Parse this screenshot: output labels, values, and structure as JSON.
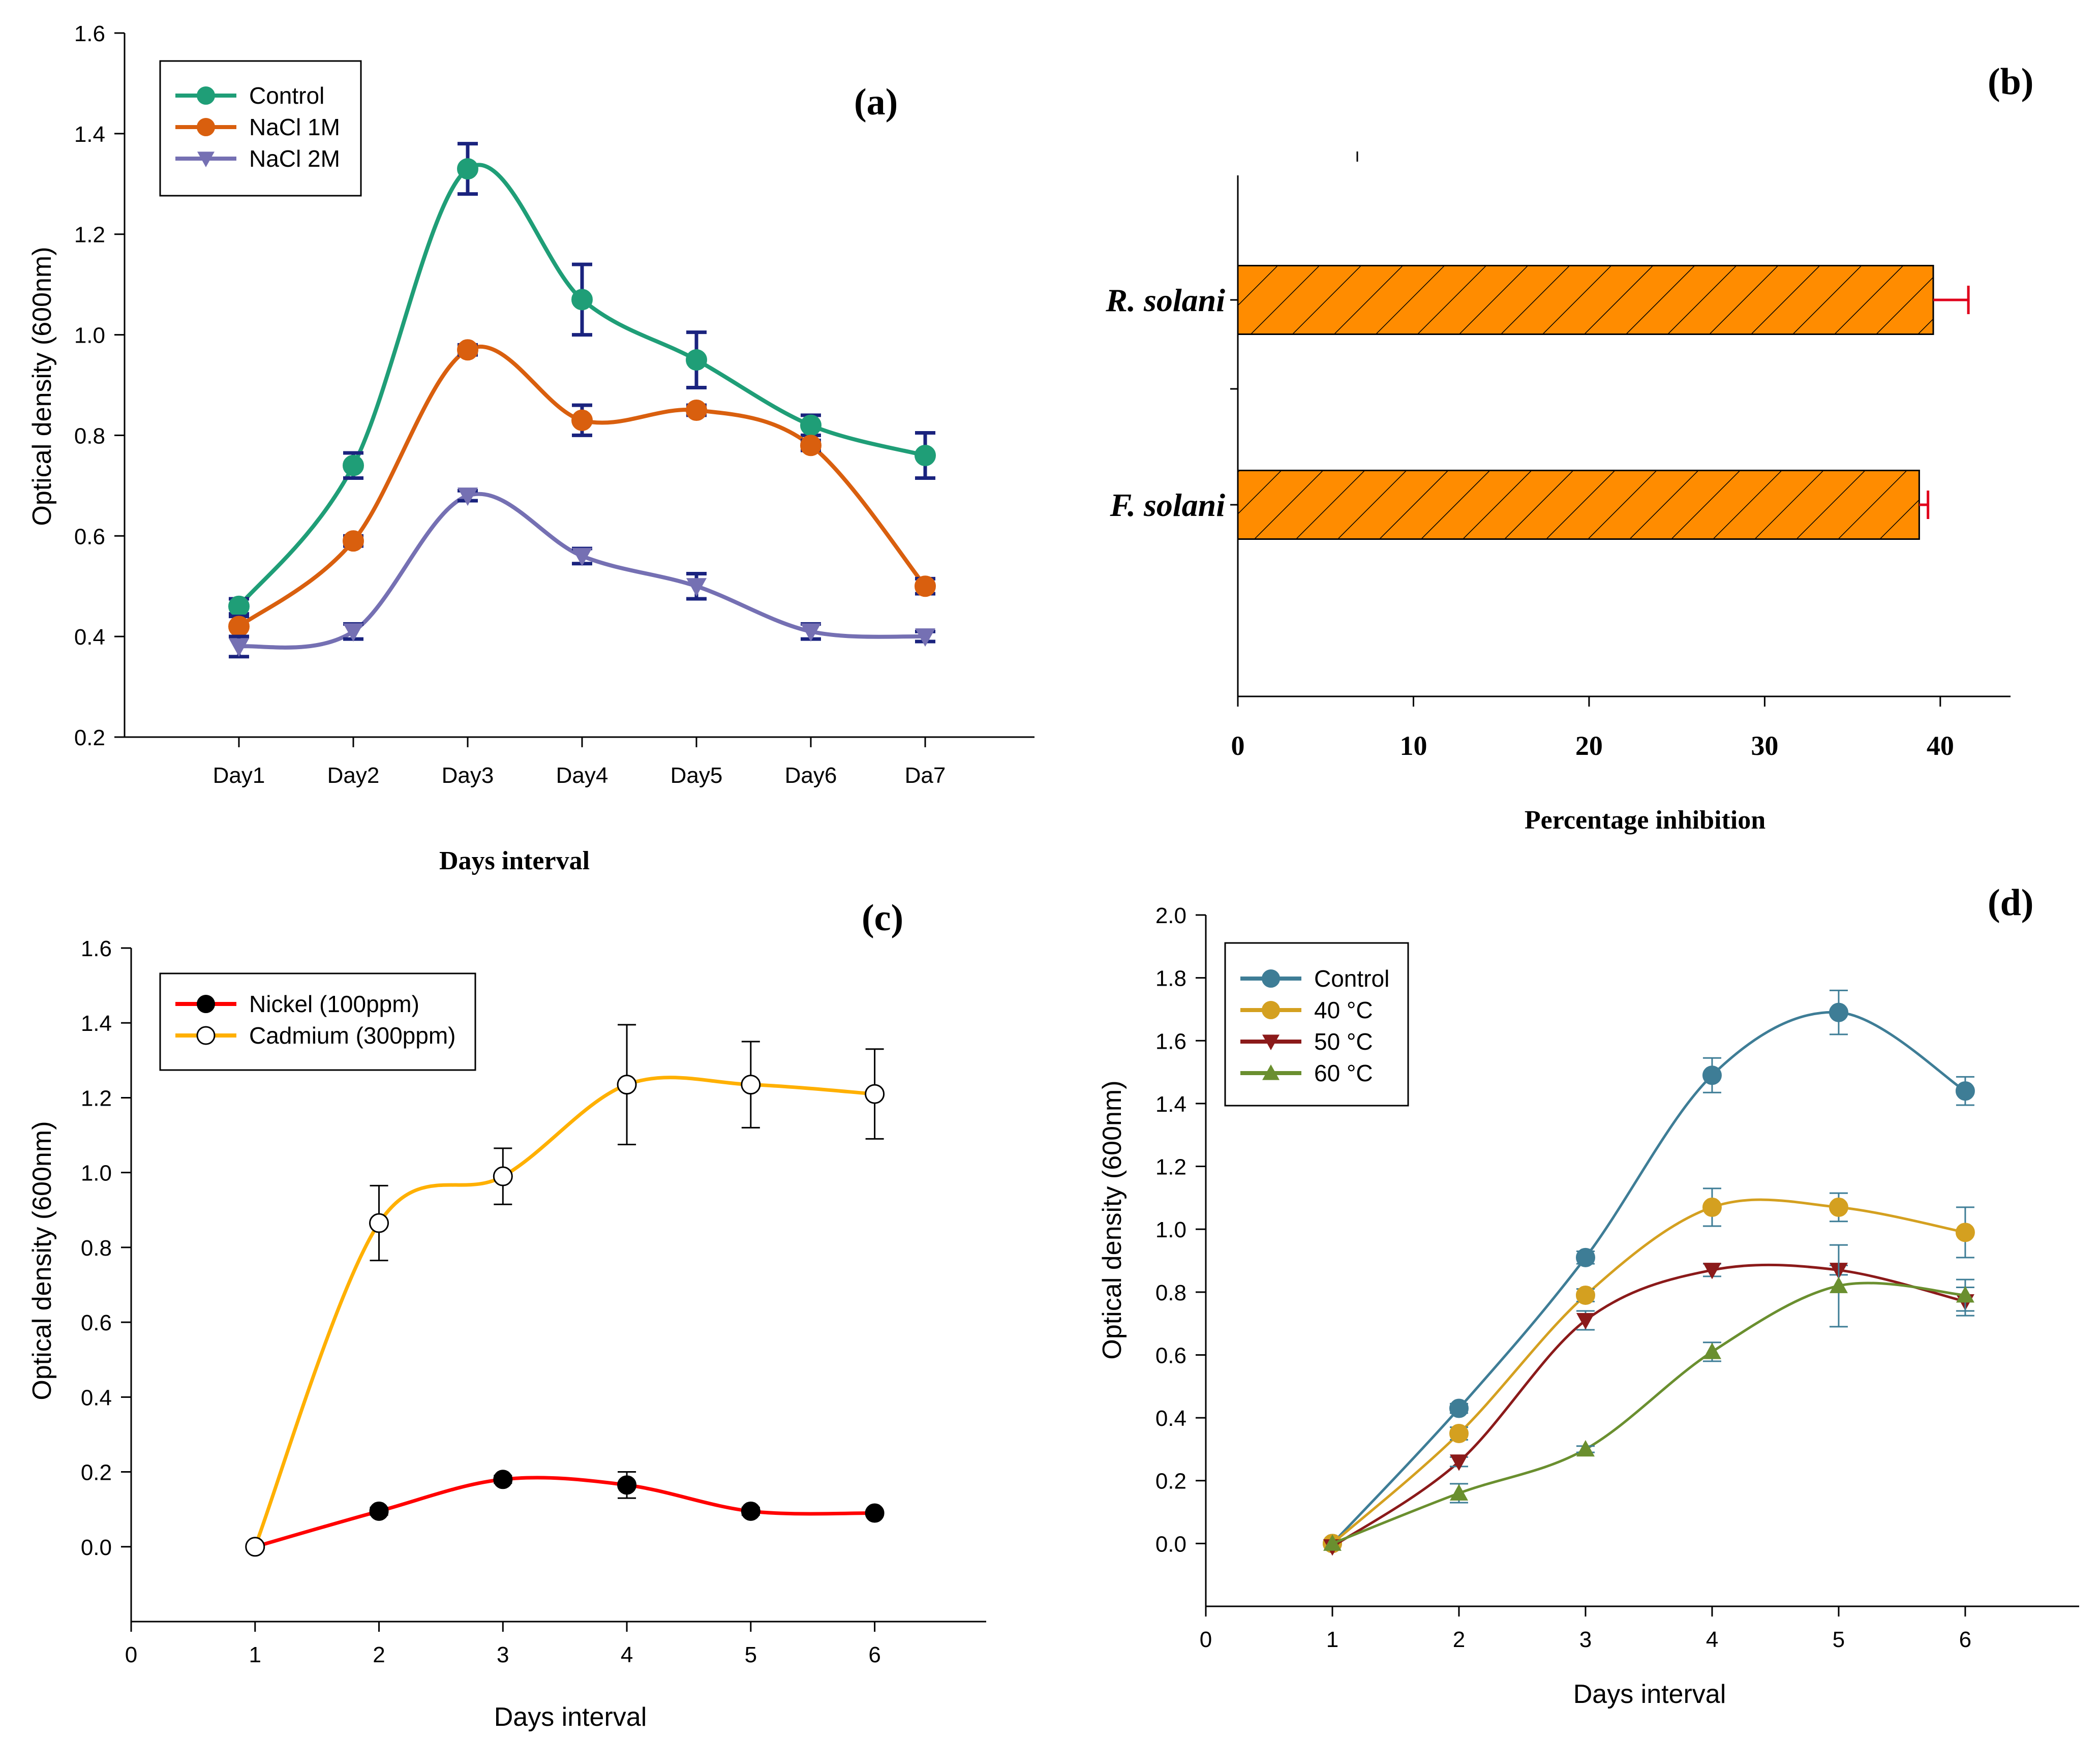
{
  "chart_data": [
    {
      "panel": "a",
      "type": "line",
      "panel_label": "(a)",
      "xlabel": "Days interval",
      "ylabel": "Optical density (600nm)",
      "categories": [
        "Day1",
        "Day2",
        "Day3",
        "Day4",
        "Day5",
        "Day6",
        "Da7"
      ],
      "ylim": [
        0.2,
        1.6
      ],
      "yticks": [
        "0.2",
        "0.4",
        "0.6",
        "0.8",
        "1.0",
        "1.2",
        "1.4",
        "1.6"
      ],
      "legend_position": "top-left",
      "series": [
        {
          "name": "Control",
          "color": "#1f9e77",
          "marker": "circle",
          "errcolor": "#1a237e",
          "values": [
            0.46,
            0.74,
            1.33,
            1.07,
            0.95,
            0.82,
            0.76
          ],
          "errors": [
            0.015,
            0.025,
            0.05,
            0.07,
            0.055,
            0.02,
            0.045
          ]
        },
        {
          "name": "NaCl 1M",
          "color": "#d95f0e",
          "marker": "circle",
          "errcolor": "#1a237e",
          "values": [
            0.42,
            0.59,
            0.97,
            0.83,
            0.85,
            0.78,
            0.5
          ],
          "errors": [
            0.02,
            0.01,
            0.01,
            0.03,
            0.01,
            0.01,
            0.015
          ]
        },
        {
          "name": "NaCl 2M",
          "color": "#7570b3",
          "marker": "triangle-down",
          "errcolor": "#1a237e",
          "values": [
            0.38,
            0.41,
            0.68,
            0.56,
            0.5,
            0.41,
            0.4
          ],
          "errors": [
            0.02,
            0.015,
            0.01,
            0.015,
            0.025,
            0.015,
            0.01
          ]
        }
      ]
    },
    {
      "panel": "b",
      "type": "bar",
      "orientation": "horizontal",
      "panel_label": "(b)",
      "xlabel": "Percentage inhibition",
      "categories": [
        "R. solani",
        "F. solani"
      ],
      "values": [
        39.6,
        38.8
      ],
      "errors": [
        2.0,
        0.5
      ],
      "xlim": [
        0,
        44
      ],
      "xticks": [
        "0",
        "10",
        "20",
        "30",
        "40"
      ],
      "bar_color": "#ff8c00",
      "error_color": "#e0001b"
    },
    {
      "panel": "c",
      "type": "line",
      "panel_label": "(c)",
      "xlabel": "Days interval",
      "ylabel": "Optical density (600nm)",
      "xlim": [
        0,
        6.9
      ],
      "xticks": [
        "0",
        "1",
        "2",
        "3",
        "4",
        "5",
        "6"
      ],
      "ylim": [
        -0.2,
        1.6
      ],
      "yticks": [
        "0.0",
        "0.2",
        "0.4",
        "0.6",
        "0.8",
        "1.0",
        "1.2",
        "1.4",
        "1.6"
      ],
      "legend_position": "top-left",
      "series": [
        {
          "name": "Nickel (100ppm)",
          "color": "#ff0000",
          "marker": "filled-circle",
          "errcolor": "#000000",
          "x": [
            1,
            2,
            3,
            4,
            5,
            6
          ],
          "values": [
            0.0,
            0.095,
            0.18,
            0.165,
            0.095,
            0.09
          ],
          "errors": [
            0,
            0.01,
            0.01,
            0.035,
            0.01,
            0.005
          ]
        },
        {
          "name": "Cadmium (300ppm)",
          "color": "#ffb000",
          "marker": "open-circle",
          "errcolor": "#000000",
          "x": [
            1,
            2,
            3,
            4,
            5,
            6
          ],
          "values": [
            0.0,
            0.865,
            0.99,
            1.235,
            1.235,
            1.21
          ],
          "errors": [
            0,
            0.1,
            0.075,
            0.16,
            0.115,
            0.12
          ]
        }
      ]
    },
    {
      "panel": "d",
      "type": "line",
      "panel_label": "(d)",
      "xlabel": "Days interval",
      "ylabel": "Optical density (600nm)",
      "xlim": [
        0,
        6.9
      ],
      "xticks": [
        "0",
        "1",
        "2",
        "3",
        "4",
        "5",
        "6"
      ],
      "ylim": [
        -0.2,
        2.0
      ],
      "yticks": [
        "0.0",
        "0.2",
        "0.4",
        "0.6",
        "0.8",
        "1.0",
        "1.2",
        "1.4",
        "1.6",
        "1.8",
        "2.0"
      ],
      "legend_position": "top-left",
      "series": [
        {
          "name": "Control",
          "color": "#3e7d96",
          "marker": "circle",
          "errcolor": "#3e7d96",
          "x": [
            1,
            2,
            3,
            4,
            5,
            6
          ],
          "values": [
            0.0,
            0.43,
            0.91,
            1.49,
            1.69,
            1.44
          ],
          "errors": [
            0,
            0.015,
            0.02,
            0.055,
            0.07,
            0.045
          ]
        },
        {
          "name": "40 °C",
          "color": "#d4a020",
          "marker": "circle",
          "errcolor": "#3e7d96",
          "x": [
            1,
            2,
            3,
            4,
            5,
            6
          ],
          "values": [
            0.0,
            0.35,
            0.79,
            1.07,
            1.07,
            0.99
          ],
          "errors": [
            0,
            0.02,
            0.02,
            0.06,
            0.045,
            0.08
          ]
        },
        {
          "name": "50 °C",
          "color": "#8b1a1a",
          "marker": "triangle-down",
          "errcolor": "#3e7d96",
          "x": [
            1,
            2,
            3,
            4,
            5,
            6
          ],
          "values": [
            -0.01,
            0.26,
            0.71,
            0.87,
            0.87,
            0.77
          ],
          "errors": [
            0,
            0.015,
            0.03,
            0.02,
            0.015,
            0.045
          ]
        },
        {
          "name": "60 °C",
          "color": "#6a8f2f",
          "marker": "triangle-up",
          "errcolor": "#3e7d96",
          "x": [
            1,
            2,
            3,
            4,
            5,
            6
          ],
          "values": [
            0.0,
            0.16,
            0.3,
            0.61,
            0.82,
            0.79
          ],
          "errors": [
            0,
            0.03,
            0.01,
            0.03,
            0.13,
            0.05
          ]
        }
      ]
    }
  ]
}
